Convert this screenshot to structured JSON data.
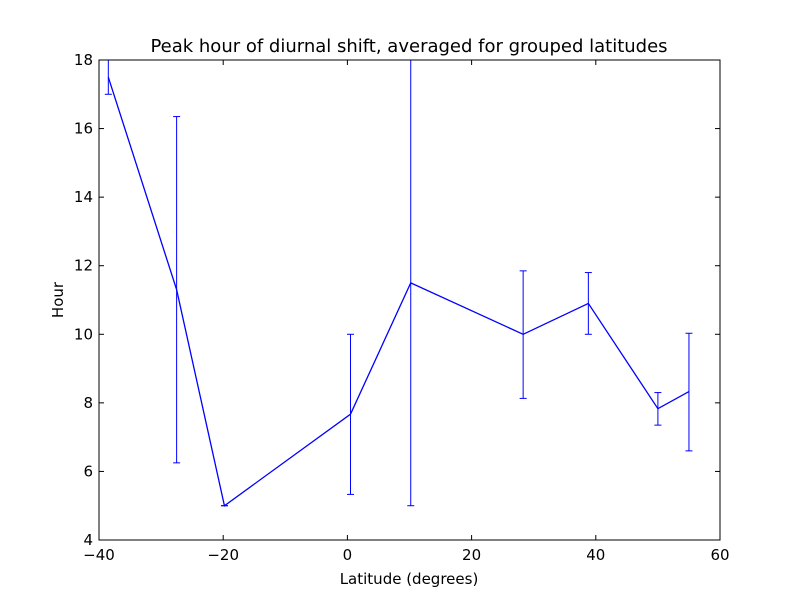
{
  "chart_data": {
    "type": "line",
    "title": "Peak hour of diurnal shift, averaged for grouped latitudes",
    "xlabel": "Latitude (degrees)",
    "ylabel": "Hour",
    "xlim": [
      -40,
      60
    ],
    "ylim": [
      4,
      18
    ],
    "xticks": [
      -40,
      -20,
      0,
      20,
      40,
      60
    ],
    "yticks": [
      4,
      6,
      8,
      10,
      12,
      14,
      16,
      18
    ],
    "xtick_labels": [
      "−40",
      "−20",
      "0",
      "20",
      "40",
      "60"
    ],
    "ytick_labels": [
      "4",
      "6",
      "8",
      "10",
      "12",
      "14",
      "16",
      "18"
    ],
    "grid": false,
    "line_color": "#0000ff",
    "series": [
      {
        "x": [
          -38.5,
          -27.5,
          -19.8,
          0.5,
          10.2,
          28.3,
          38.8,
          50.0,
          55.0
        ],
        "y": [
          17.5,
          11.3,
          5.0,
          7.67,
          11.5,
          10.0,
          10.9,
          7.83,
          8.33
        ],
        "err_low": [
          17.0,
          6.25,
          5.0,
          5.33,
          5.0,
          8.13,
          10.0,
          7.35,
          6.6
        ],
        "err_high": [
          18.0,
          16.35,
          5.0,
          10.0,
          18.0,
          11.85,
          11.8,
          8.3,
          10.03
        ]
      }
    ]
  }
}
